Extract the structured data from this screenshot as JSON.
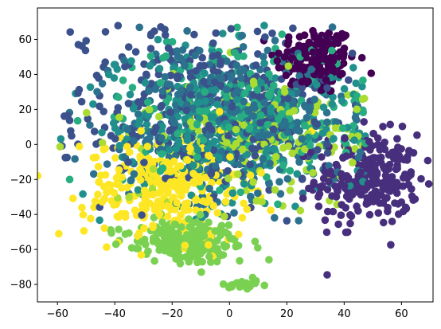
{
  "chart_data": {
    "type": "scatter",
    "title": "",
    "xlabel": "",
    "ylabel": "",
    "xlim": [
      -67,
      71
    ],
    "ylim": [
      -90,
      78
    ],
    "x_ticks": [
      -60,
      -40,
      -20,
      0,
      20,
      40,
      60
    ],
    "y_ticks": [
      -80,
      -60,
      -40,
      -20,
      0,
      20,
      40,
      60
    ],
    "x_tick_labels": [
      "−60",
      "−40",
      "−20",
      "0",
      "20",
      "40",
      "60"
    ],
    "y_tick_labels": [
      "−80",
      "−60",
      "−40",
      "−20",
      "0",
      "20",
      "40",
      "60"
    ],
    "grid": false,
    "legend": "none",
    "colormap": "viridis",
    "colors": [
      "#440154",
      "#472f7d",
      "#3b518b",
      "#2c718e",
      "#21908d",
      "#27ad81",
      "#5cc863",
      "#7ad151",
      "#aadc32",
      "#fde725"
    ],
    "clusters": [
      {
        "color_index": 0,
        "count": 170,
        "cx": 30,
        "cy": 48,
        "sx": 7,
        "sy": 10
      },
      {
        "color_index": 1,
        "count": 260,
        "cx": 48,
        "cy": -20,
        "sx": 9,
        "sy": 13
      },
      {
        "color_index": 2,
        "count": 360,
        "cx": -10,
        "cy": 20,
        "sx": 22,
        "sy": 24
      },
      {
        "color_index": 3,
        "count": 360,
        "cx": 0,
        "cy": 15,
        "sx": 22,
        "sy": 24
      },
      {
        "color_index": 4,
        "count": 300,
        "cx": 0,
        "cy": 10,
        "sx": 22,
        "sy": 22
      },
      {
        "color_index": 5,
        "count": 240,
        "cx": 5,
        "cy": 20,
        "sx": 20,
        "sy": 22
      },
      {
        "color_index": 7,
        "count": 200,
        "cx": -15,
        "cy": -55,
        "sx": 10,
        "sy": 6
      },
      {
        "color_index": 7,
        "count": 25,
        "cx": 5,
        "cy": -80,
        "sx": 4,
        "sy": 1.5
      },
      {
        "color_index": 8,
        "count": 200,
        "cx": 10,
        "cy": 5,
        "sx": 22,
        "sy": 20
      },
      {
        "color_index": 9,
        "count": 300,
        "cx": -22,
        "cy": -25,
        "sx": 14,
        "sy": 15
      }
    ]
  }
}
